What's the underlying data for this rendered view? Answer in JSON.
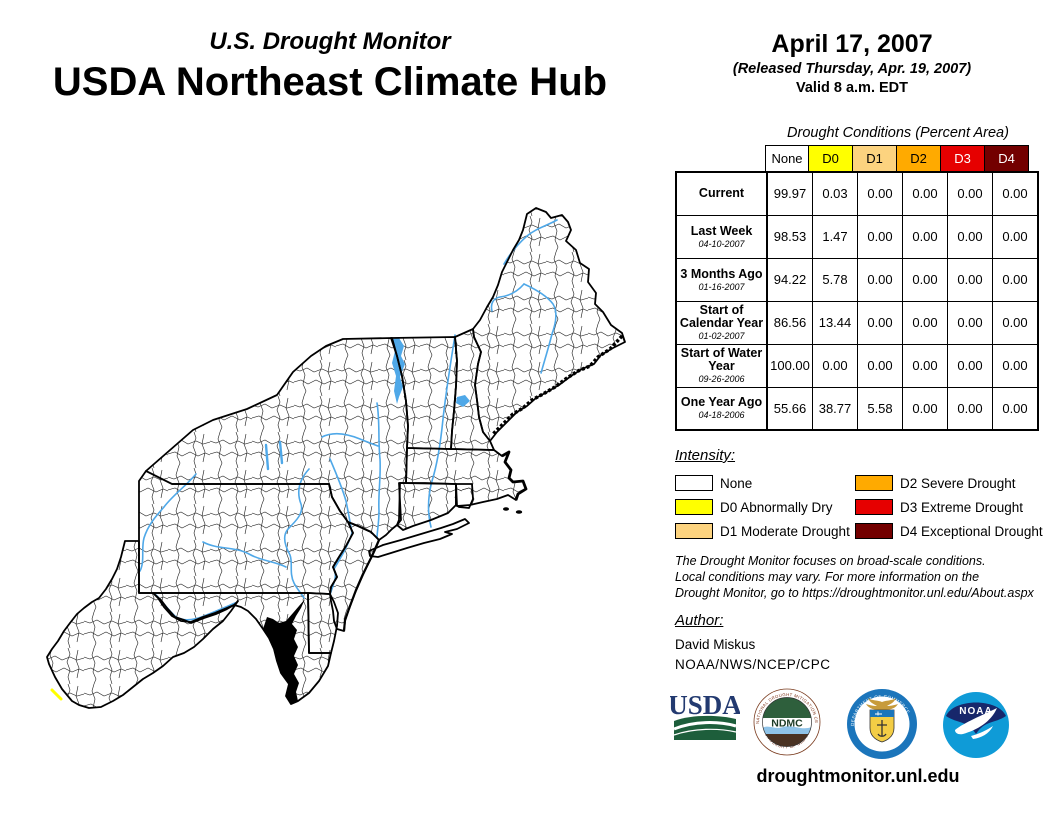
{
  "header": {
    "kicker": "U.S. Drought Monitor",
    "title": "USDA Northeast Climate Hub",
    "date": "April 17, 2007",
    "released": "(Released Thursday, Apr. 19, 2007)",
    "valid": "Valid 8 a.m. EDT"
  },
  "table": {
    "title": "Drought Conditions (Percent Area)",
    "columns": [
      {
        "label": "None",
        "bg": "#FFFFFF",
        "fg": "#000000"
      },
      {
        "label": "D0",
        "bg": "#FFFF00",
        "fg": "#000000"
      },
      {
        "label": "D1",
        "bg": "#FCD37F",
        "fg": "#000000"
      },
      {
        "label": "D2",
        "bg": "#FFAA00",
        "fg": "#000000"
      },
      {
        "label": "D3",
        "bg": "#E60000",
        "fg": "#FFFFFF"
      },
      {
        "label": "D4",
        "bg": "#730000",
        "fg": "#FFFFFF"
      }
    ],
    "rows": [
      {
        "label": "Current",
        "date": "",
        "values": [
          "99.97",
          "0.03",
          "0.00",
          "0.00",
          "0.00",
          "0.00"
        ]
      },
      {
        "label": "Last Week",
        "date": "04-10-2007",
        "values": [
          "98.53",
          "1.47",
          "0.00",
          "0.00",
          "0.00",
          "0.00"
        ]
      },
      {
        "label": "3 Months Ago",
        "date": "01-16-2007",
        "values": [
          "94.22",
          "5.78",
          "0.00",
          "0.00",
          "0.00",
          "0.00"
        ]
      },
      {
        "label": "Start of Calendar Year",
        "date": "01-02-2007",
        "values": [
          "86.56",
          "13.44",
          "0.00",
          "0.00",
          "0.00",
          "0.00"
        ]
      },
      {
        "label": "Start of Water Year",
        "date": "09-26-2006",
        "values": [
          "100.00",
          "0.00",
          "0.00",
          "0.00",
          "0.00",
          "0.00"
        ]
      },
      {
        "label": "One Year Ago",
        "date": "04-18-2006",
        "values": [
          "55.66",
          "38.77",
          "5.58",
          "0.00",
          "0.00",
          "0.00"
        ]
      }
    ]
  },
  "legend": {
    "title": "Intensity:",
    "items": [
      {
        "label": "None",
        "color": "#FFFFFF"
      },
      {
        "label": "D0 Abnormally Dry",
        "color": "#FFFF00"
      },
      {
        "label": "D1 Moderate Drought",
        "color": "#FCD37F"
      },
      {
        "label": "D2 Severe Drought",
        "color": "#FFAA00"
      },
      {
        "label": "D3 Extreme Drought",
        "color": "#E60000"
      },
      {
        "label": "D4 Exceptional Drought",
        "color": "#730000"
      }
    ]
  },
  "disclaimer": {
    "line1": "The Drought Monitor focuses on broad-scale conditions.",
    "line2": "Local conditions may vary. For more information on the",
    "line3": "Drought Monitor, go to https://droughtmonitor.unl.edu/About.aspx"
  },
  "author": {
    "heading": "Author:",
    "name": "David Miskus",
    "org": "NOAA/NWS/NCEP/CPC"
  },
  "logos": {
    "usda": {
      "text": "USDA"
    },
    "ndmc": {
      "text": "NDMC",
      "ring_top": "NATIONAL DROUGHT MITIGATION CENTER",
      "ring_bottom": "UNIVERSITY OF NEBRASKA"
    },
    "commerce": {
      "ring_top": "DEPARTMENT OF COMMERCE",
      "ring_bottom": "UNITED STATES OF AMERICA"
    },
    "noaa": {
      "text": "NOAA"
    }
  },
  "footer": {
    "url": "droughtmonitor.unl.edu"
  },
  "map": {
    "land_color": "#FFFFFF",
    "river_color": "#4FA8E8",
    "d0_patch_color": "#FFFF00"
  },
  "chart_data": {
    "type": "table",
    "title": "Drought Conditions (Percent Area)",
    "columns": [
      "None",
      "D0",
      "D1",
      "D2",
      "D3",
      "D4"
    ],
    "rows": [
      {
        "period": "Current",
        "values": [
          99.97,
          0.03,
          0.0,
          0.0,
          0.0,
          0.0
        ]
      },
      {
        "period": "Last Week (04-10-2007)",
        "values": [
          98.53,
          1.47,
          0.0,
          0.0,
          0.0,
          0.0
        ]
      },
      {
        "period": "3 Months Ago (01-16-2007)",
        "values": [
          94.22,
          5.78,
          0.0,
          0.0,
          0.0,
          0.0
        ]
      },
      {
        "period": "Start of Calendar Year (01-02-2007)",
        "values": [
          86.56,
          13.44,
          0.0,
          0.0,
          0.0,
          0.0
        ]
      },
      {
        "period": "Start of Water Year (09-26-2006)",
        "values": [
          100.0,
          0.0,
          0.0,
          0.0,
          0.0,
          0.0
        ]
      },
      {
        "period": "One Year Ago (04-18-2006)",
        "values": [
          55.66,
          38.77,
          5.58,
          0.0,
          0.0,
          0.0
        ]
      }
    ]
  }
}
